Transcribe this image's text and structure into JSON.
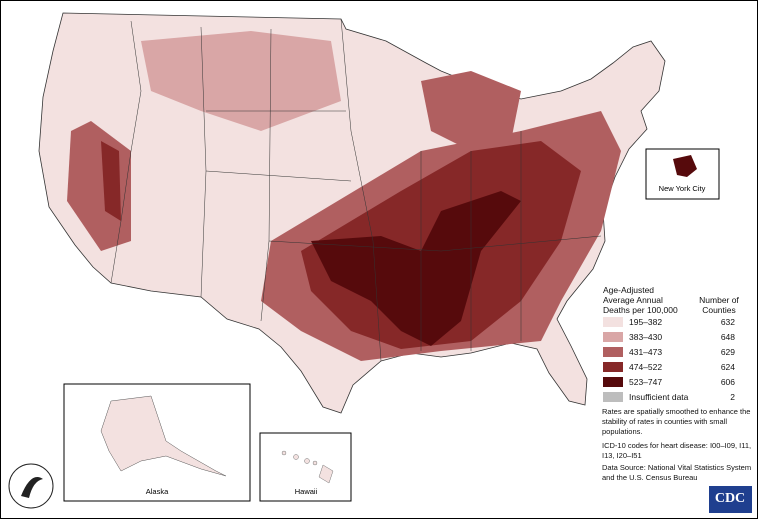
{
  "legend": {
    "title": [
      "Age-Adjusted",
      "Average Annual",
      "Deaths per 100,000"
    ],
    "count_header": [
      "Number of",
      "Counties"
    ],
    "items": [
      {
        "label": "195–382",
        "count": 632,
        "color": "#f3e1e0"
      },
      {
        "label": "383–430",
        "count": 648,
        "color": "#d9a6a6"
      },
      {
        "label": "431–473",
        "count": 629,
        "color": "#b05f60"
      },
      {
        "label": "474–522",
        "count": 624,
        "color": "#862828"
      },
      {
        "label": "523–747",
        "count": 606,
        "color": "#560a0c"
      },
      {
        "label": "Insufficient data",
        "count": 2,
        "color": "#bdbdbd"
      }
    ]
  },
  "insets": {
    "nyc": "New York City",
    "alaska": "Alaska",
    "hawaii": "Hawaii"
  },
  "notes": [
    "Rates are spatially smoothed to enhance the stability of rates in counties with small populations.",
    "ICD-10 codes for heart disease: I00–I09, I11, I13, I20–I51",
    "Data Source: National Vital Statistics System and the U.S. Census Bureau"
  ],
  "logo": "CDC"
}
